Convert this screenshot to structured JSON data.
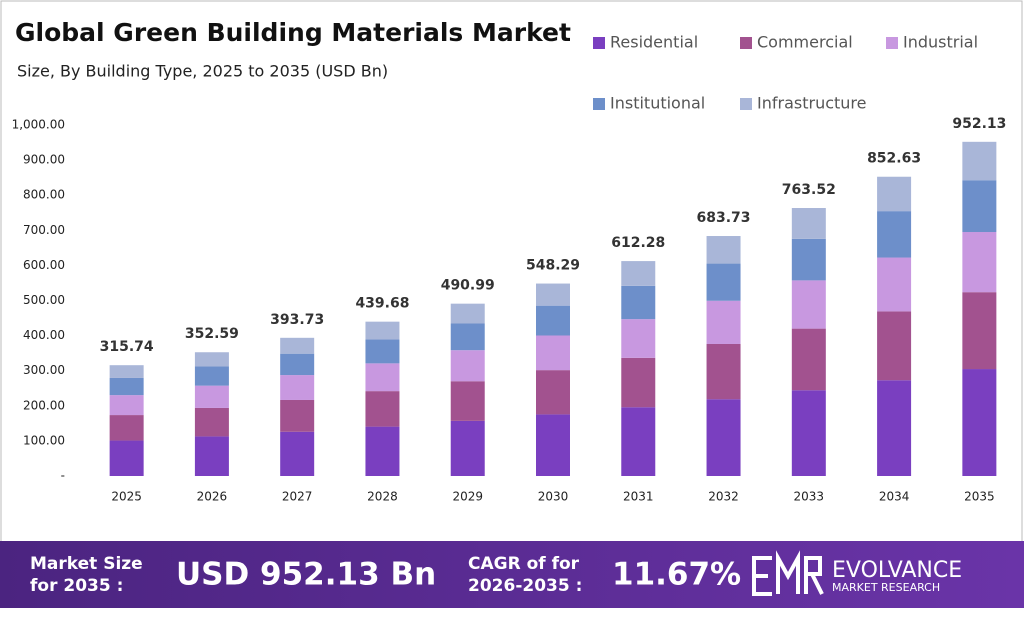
{
  "chart_data": {
    "type": "stacked-bar",
    "title": "Global Green Building Materials Market",
    "subtitle": "Size, By Building Type, 2025 to 2035 (USD Bn)",
    "categories": [
      "2025",
      "2026",
      "2027",
      "2028",
      "2029",
      "2030",
      "2031",
      "2032",
      "2033",
      "2034",
      "2035"
    ],
    "series": [
      {
        "name": "Residential",
        "color": "#7a3fc0",
        "values": [
          101.0,
          112.8,
          126.0,
          140.7,
          157.1,
          175.5,
          195.9,
          218.8,
          244.3,
          272.8,
          304.7
        ]
      },
      {
        "name": "Commercial",
        "color": "#a2528f",
        "values": [
          72.6,
          81.1,
          90.6,
          101.1,
          112.9,
          126.1,
          140.8,
          157.3,
          175.6,
          196.1,
          219.0
        ]
      },
      {
        "name": "Industrial",
        "color": "#c898e0",
        "values": [
          56.8,
          63.5,
          70.9,
          79.1,
          88.4,
          98.7,
          110.2,
          123.1,
          137.4,
          153.5,
          171.4
        ]
      },
      {
        "name": "Institutional",
        "color": "#6d8fca",
        "values": [
          48.9,
          54.7,
          61.0,
          68.2,
          76.1,
          85.0,
          94.9,
          106.0,
          118.3,
          132.2,
          147.6
        ]
      },
      {
        "name": "Infrastructure",
        "color": "#a9b6d8",
        "values": [
          36.4,
          40.5,
          45.2,
          50.6,
          56.5,
          63.0,
          70.5,
          78.5,
          87.9,
          98.0,
          109.4
        ]
      }
    ],
    "totals": [
      315.74,
      352.59,
      393.73,
      439.68,
      490.99,
      548.29,
      612.28,
      683.73,
      763.52,
      852.63,
      952.13
    ],
    "ylim": [
      0,
      1000
    ],
    "yticks": [
      {
        "value": 0,
        "label": "-"
      },
      {
        "value": 100,
        "label": "100.00"
      },
      {
        "value": 200,
        "label": "200.00"
      },
      {
        "value": 300,
        "label": "300.00"
      },
      {
        "value": 400,
        "label": "400.00"
      },
      {
        "value": 500,
        "label": "500.00"
      },
      {
        "value": 600,
        "label": "600.00"
      },
      {
        "value": 700,
        "label": "700.00"
      },
      {
        "value": 800,
        "label": "800.00"
      },
      {
        "value": 900,
        "label": "900.00"
      },
      {
        "value": 1000,
        "label": "1,000.00"
      }
    ],
    "grid": false,
    "legend": "top-right"
  },
  "footer": {
    "market_size_label": [
      "Market Size",
      "for 2035 :"
    ],
    "market_size": "USD 952.13 Bn",
    "cagr_label": [
      "CAGR of for",
      "2026-2035 :"
    ],
    "cagr": "11.67%",
    "brand": "EVOLVANCE",
    "brand_sub": "MARKET RESEARCH"
  }
}
